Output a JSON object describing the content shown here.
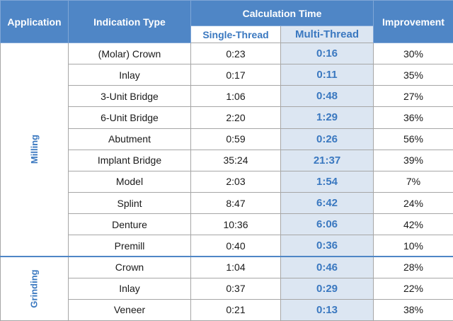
{
  "header": {
    "application": "Application",
    "indication_type": "Indication Type",
    "calculation_time": "Calculation Time",
    "improvement": "Improvement",
    "single_thread": "Single-Thread",
    "multi_thread": "Multi-Thread"
  },
  "colors": {
    "header_bg": "#4f86c6",
    "multi_thread_bg": "#dce6f2",
    "accent_text": "#3a78c0"
  },
  "groups": [
    {
      "name": "Milling",
      "rows": [
        {
          "type": "(Molar) Crown",
          "single": "0:23",
          "multi": "0:16",
          "improvement": "30%"
        },
        {
          "type": "Inlay",
          "single": "0:17",
          "multi": "0:11",
          "improvement": "35%"
        },
        {
          "type": "3-Unit Bridge",
          "single": "1:06",
          "multi": "0:48",
          "improvement": "27%"
        },
        {
          "type": "6-Unit Bridge",
          "single": "2:20",
          "multi": "1:29",
          "improvement": "36%"
        },
        {
          "type": "Abutment",
          "single": "0:59",
          "multi": "0:26",
          "improvement": "56%"
        },
        {
          "type": "Implant Bridge",
          "single": "35:24",
          "multi": "21:37",
          "improvement": "39%"
        },
        {
          "type": "Model",
          "single": "2:03",
          "multi": "1:54",
          "improvement": "7%"
        },
        {
          "type": "Splint",
          "single": "8:47",
          "multi": "6:42",
          "improvement": "24%"
        },
        {
          "type": "Denture",
          "single": "10:36",
          "multi": "6:06",
          "improvement": "42%"
        },
        {
          "type": "Premill",
          "single": "0:40",
          "multi": "0:36",
          "improvement": "10%"
        }
      ]
    },
    {
      "name": "Grinding",
      "rows": [
        {
          "type": "Crown",
          "single": "1:04",
          "multi": "0:46",
          "improvement": "28%"
        },
        {
          "type": "Inlay",
          "single": "0:37",
          "multi": "0:29",
          "improvement": "22%"
        },
        {
          "type": "Veneer",
          "single": "0:21",
          "multi": "0:13",
          "improvement": "38%"
        }
      ]
    }
  ]
}
